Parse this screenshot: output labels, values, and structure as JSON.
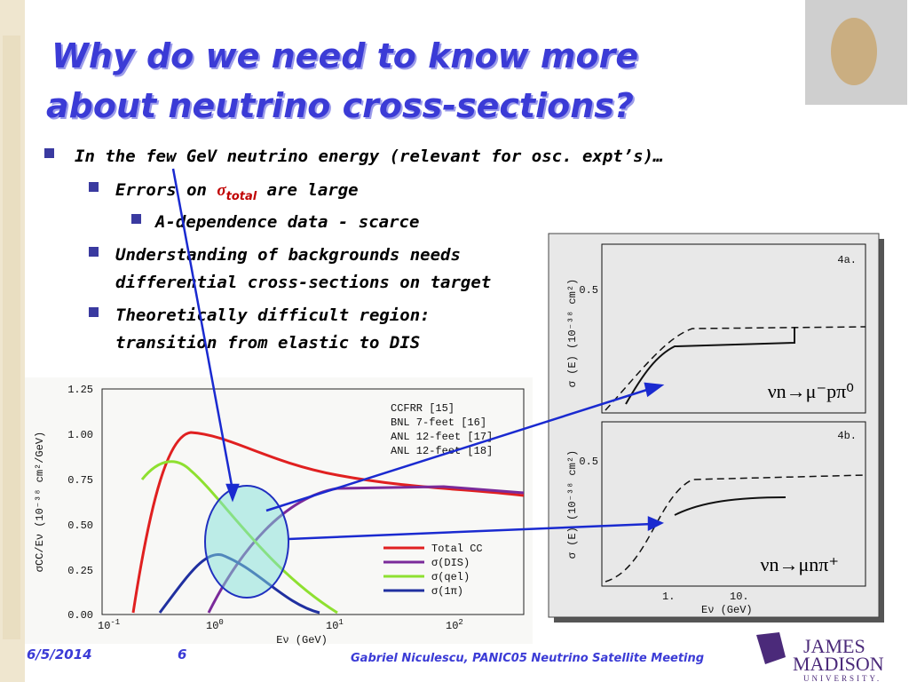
{
  "slide": {
    "title": [
      "Why do we need to know more",
      "about neutrino cross-sections?"
    ],
    "bullets": [
      {
        "text": "In the few GeV neutrino energy (relevant for osc. expt’s)…"
      },
      {
        "pre": "Errors on ",
        "sym": "σ",
        "sub": "total",
        "post": " are large"
      },
      {
        "text": "A-dependence data - scarce"
      },
      {
        "lines": [
          "Understanding of backgrounds needs",
          "differential cross-sections on target"
        ]
      },
      {
        "lines": [
          "Theoretically difficult region:",
          "transition from elastic to DIS"
        ]
      }
    ],
    "left_plot": {
      "yticks": [
        "1.25",
        "1.00",
        "0.75",
        "0.50",
        "0.25",
        "0.00"
      ],
      "xticks": [
        {
          "base": "10",
          "exp": "-1"
        },
        {
          "base": "10",
          "exp": "0"
        },
        {
          "base": "10",
          "exp": "1"
        },
        {
          "base": "10",
          "exp": "2"
        }
      ],
      "ylabel": "σCC/Eν  (10⁻³⁸ cm²/GeV)",
      "xlabel": "Eν (GeV)",
      "data_legend": [
        "CCFRR [15]",
        "BNL 7-feet [16]",
        "ANL 12-feet [17]",
        "ANL 12-feet [18]"
      ],
      "curve_legend": [
        "Total CC",
        "σ(DIS)",
        "σ(qel)",
        "σ(1π)"
      ]
    },
    "right_plot": {
      "panels": [
        {
          "tag": "4a.",
          "ytick": "0.5",
          "ylabel": "σ (E) (10⁻³⁸ cm²)",
          "reaction": "νn→μ⁻pπ⁰"
        },
        {
          "tag": "4b.",
          "ytick": "0.5",
          "ylabel": "σ (E) (10⁻³⁸ cm²)",
          "reaction": "νn→μnπ⁺"
        }
      ],
      "xticks": [
        "1.",
        "10."
      ],
      "xlabel": "Eν (GeV)"
    },
    "footer": {
      "date": "6/5/2014",
      "page": "6",
      "credit": "Gabriel Niculescu, PANIC05 Neutrino Satellite Meeting",
      "logo": [
        "JAMES",
        "MADISON",
        "UNIVERSITY."
      ]
    }
  }
}
